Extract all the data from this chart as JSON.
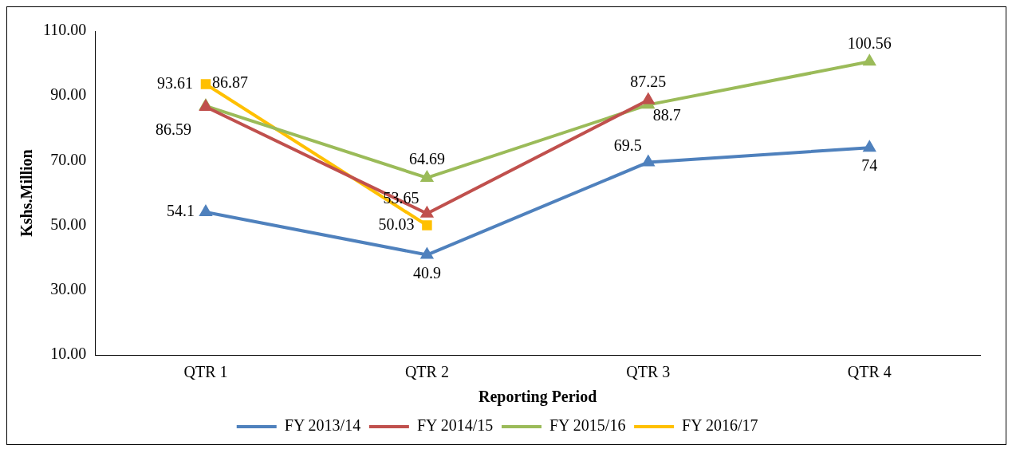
{
  "chart_data": {
    "type": "line",
    "xlabel": "Reporting Period",
    "ylabel": "Kshs.Million",
    "categories": [
      "QTR 1",
      "QTR 2",
      "QTR 3",
      "QTR 4"
    ],
    "series": [
      {
        "name": "FY 2013/14",
        "color": "#4f81bd",
        "marker": "triangle",
        "values": [
          54.1,
          40.9,
          69.5,
          74
        ]
      },
      {
        "name": "FY 2014/15",
        "color": "#c0504d",
        "marker": "triangle",
        "values": [
          86.59,
          53.65,
          88.7,
          null
        ]
      },
      {
        "name": "FY 2015/16",
        "color": "#9bbb59",
        "marker": "triangle",
        "values": [
          86.87,
          64.69,
          87.25,
          100.56
        ]
      },
      {
        "name": "FY 2016/17",
        "color": "#ffc000",
        "marker": "square",
        "values": [
          93.61,
          50.03,
          null,
          null
        ]
      }
    ],
    "ylim": [
      10,
      110
    ],
    "yticks": [
      {
        "value": 10,
        "label": "10.00"
      },
      {
        "value": 30,
        "label": "30.00"
      },
      {
        "value": 50,
        "label": "50.00"
      },
      {
        "value": 70,
        "label": "70.00"
      },
      {
        "value": 90,
        "label": "90.00"
      },
      {
        "value": 110,
        "label": "110.00"
      }
    ],
    "data_labels": true,
    "legend": "bottom",
    "grid": false
  }
}
